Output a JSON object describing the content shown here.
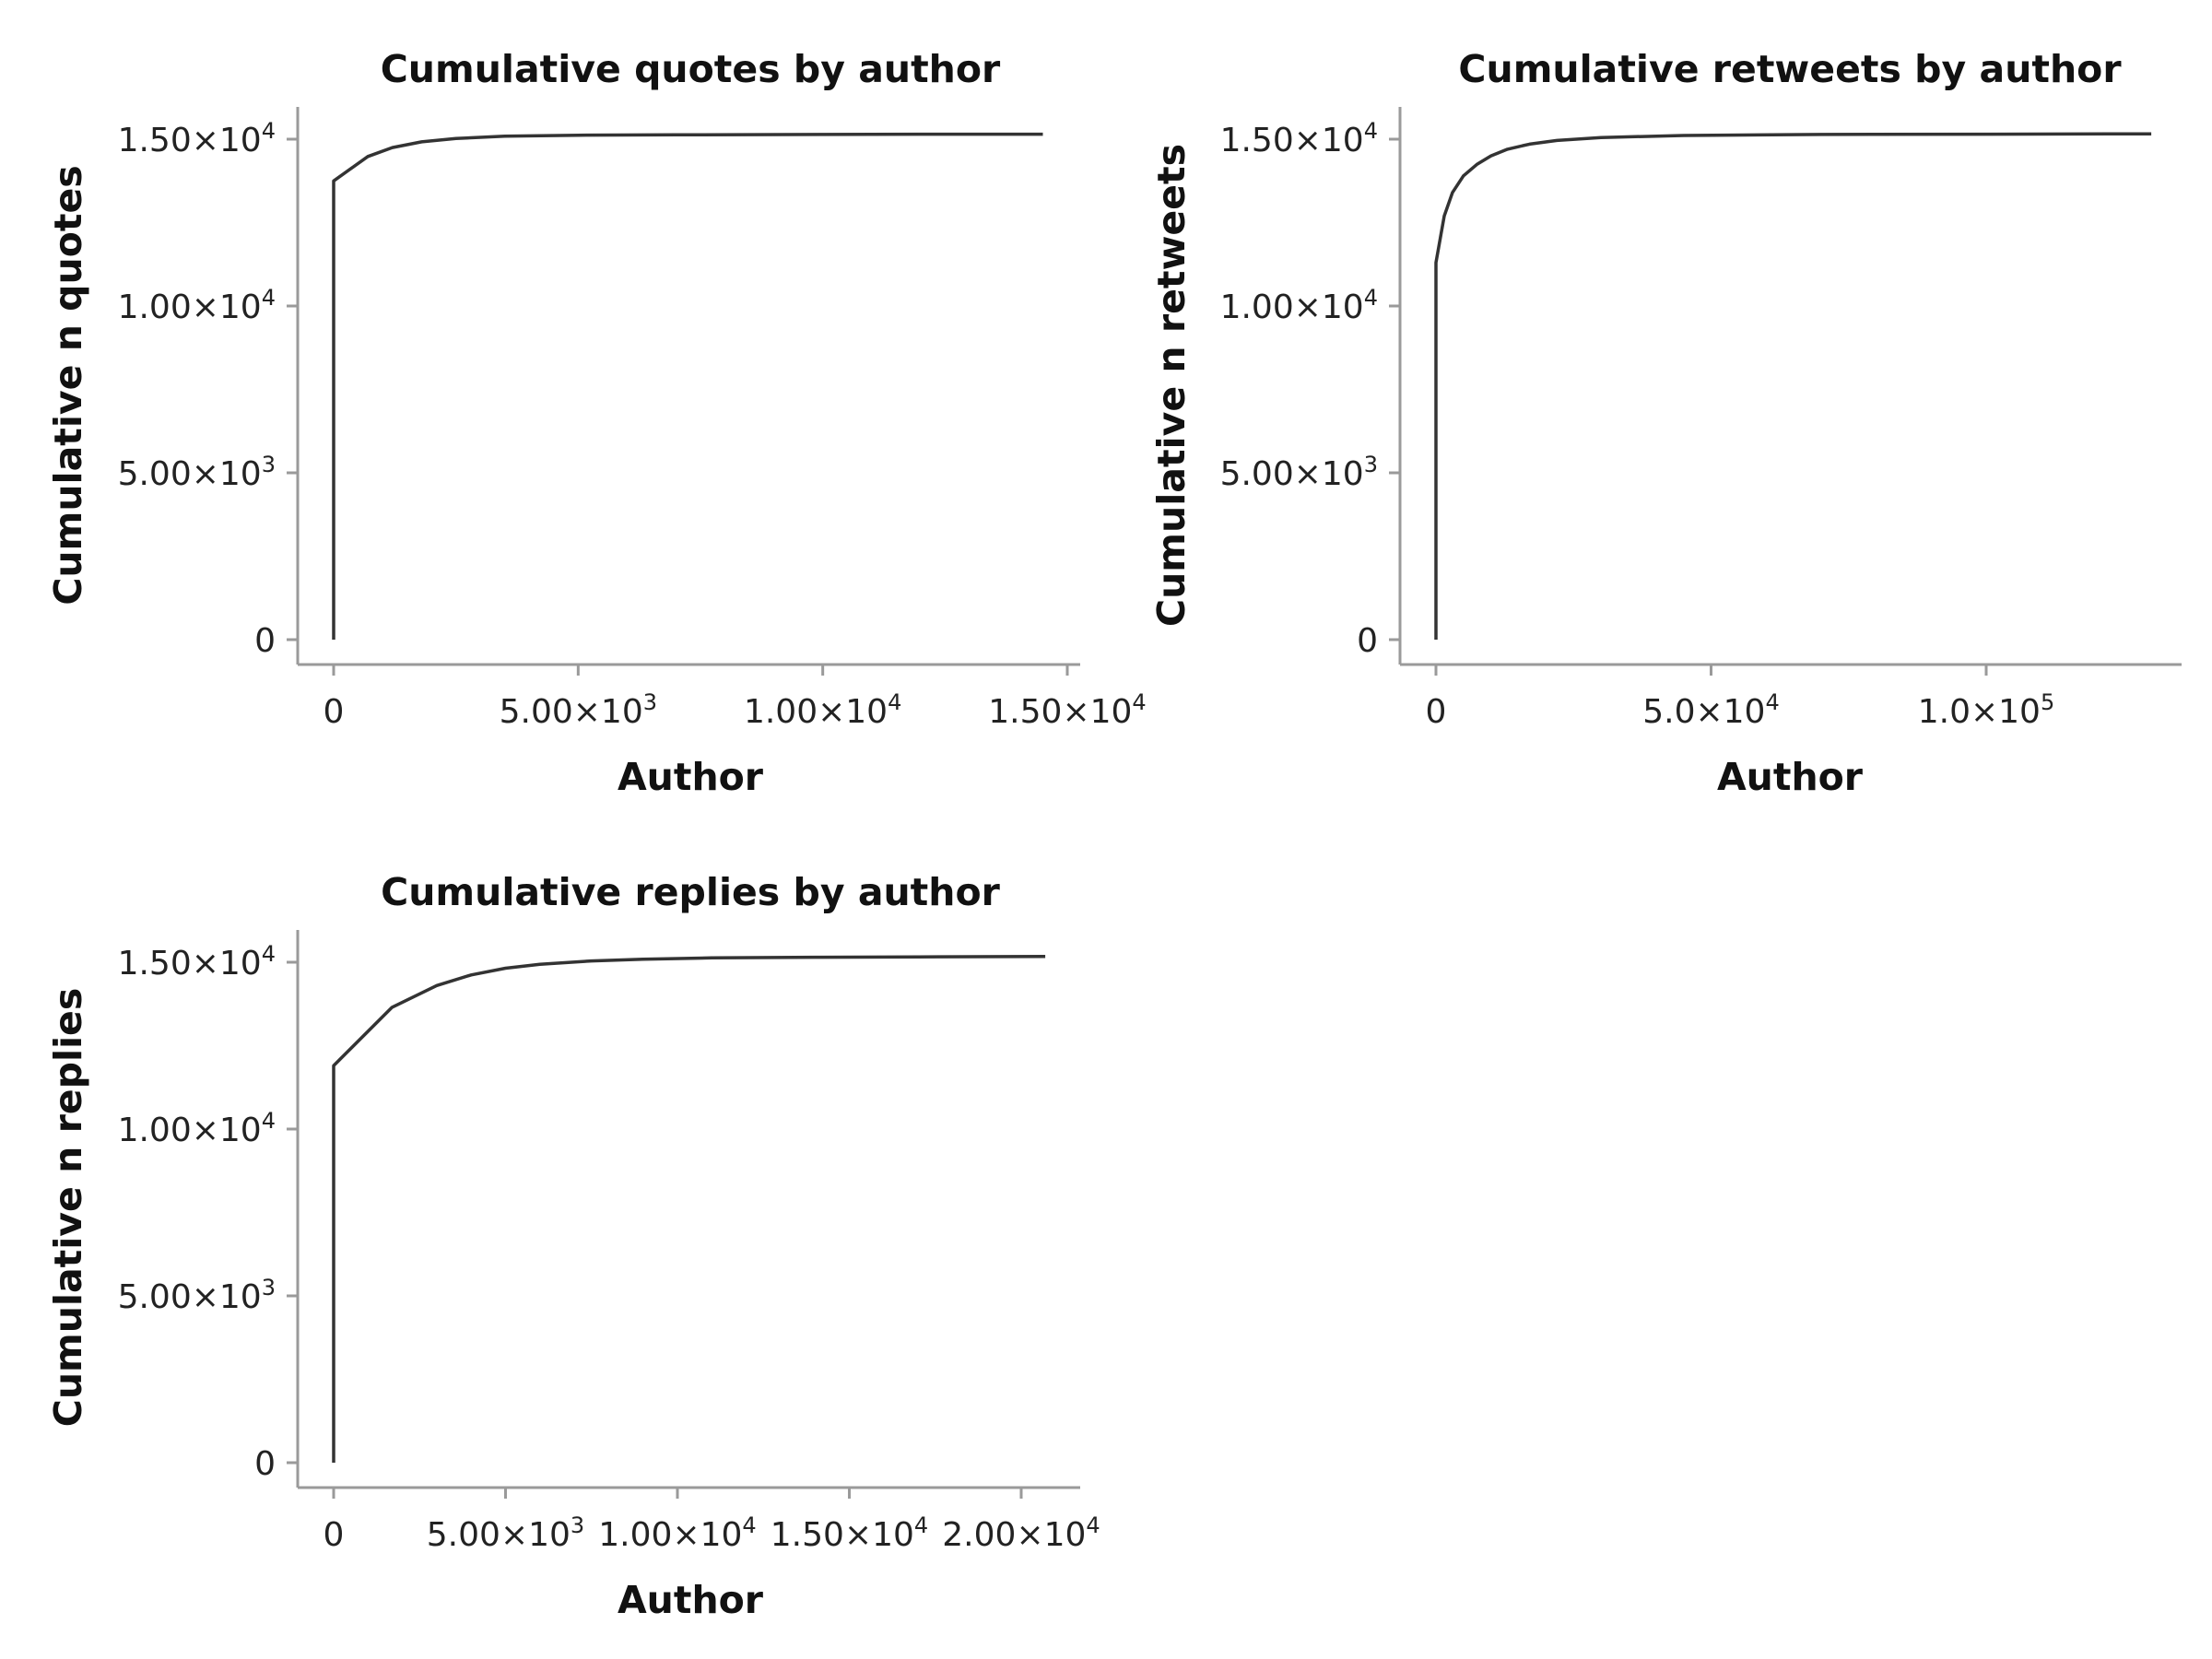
{
  "chart_data": [
    {
      "type": "line",
      "title": "Cumulative quotes by author",
      "xlabel": "Author",
      "ylabel": "Cumulative n quotes",
      "xlim": [
        0,
        15000
      ],
      "ylim": [
        0,
        15000
      ],
      "x_ticks": [
        {
          "value": 0,
          "mantissa": "0",
          "exponent": ""
        },
        {
          "value": 5000,
          "mantissa": "5.00×10",
          "exponent": "3"
        },
        {
          "value": 10000,
          "mantissa": "1.00×10",
          "exponent": "4"
        },
        {
          "value": 15000,
          "mantissa": "1.50×10",
          "exponent": "4"
        }
      ],
      "y_ticks": [
        {
          "value": 0,
          "mantissa": "0",
          "exponent": ""
        },
        {
          "value": 5000,
          "mantissa": "5.00×10",
          "exponent": "3"
        },
        {
          "value": 10000,
          "mantissa": "1.00×10",
          "exponent": "4"
        },
        {
          "value": 15000,
          "mantissa": "1.50×10",
          "exponent": "4"
        }
      ],
      "x_axis_max": 15200,
      "y_axis_max": 16000,
      "grid": false,
      "series": [
        {
          "x": [
            0,
            0,
            700,
            1200,
            1800,
            2500,
            3500,
            5000,
            7000,
            10000,
            12000,
            14500
          ],
          "y": [
            0,
            13750,
            14480,
            14750,
            14920,
            15020,
            15090,
            15120,
            15130,
            15140,
            15150,
            15150
          ]
        }
      ]
    },
    {
      "type": "line",
      "title": "Cumulative retweets by author",
      "xlabel": "Author",
      "ylabel": "Cumulative n retweets",
      "xlim": [
        0,
        130000
      ],
      "ylim": [
        0,
        15000
      ],
      "x_ticks": [
        {
          "value": 0,
          "mantissa": "0",
          "exponent": ""
        },
        {
          "value": 50000,
          "mantissa": "5.0×10",
          "exponent": "4"
        },
        {
          "value": 100000,
          "mantissa": "1.0×10",
          "exponent": "5"
        }
      ],
      "y_ticks": [
        {
          "value": 0,
          "mantissa": "0",
          "exponent": ""
        },
        {
          "value": 5000,
          "mantissa": "5.00×10",
          "exponent": "3"
        },
        {
          "value": 10000,
          "mantissa": "1.00×10",
          "exponent": "4"
        },
        {
          "value": 15000,
          "mantissa": "1.50×10",
          "exponent": "4"
        }
      ],
      "x_axis_max": 136000,
      "y_axis_max": 16000,
      "grid": false,
      "series": [
        {
          "x": [
            0,
            0,
            1500,
            3000,
            5000,
            7500,
            10000,
            13000,
            17000,
            22000,
            30000,
            45000,
            70000,
            100000,
            130000
          ],
          "y": [
            0,
            11300,
            12700,
            13400,
            13900,
            14250,
            14500,
            14700,
            14850,
            14960,
            15050,
            15110,
            15140,
            15150,
            15160
          ]
        }
      ]
    },
    {
      "type": "line",
      "title": "Cumulative replies by author",
      "xlabel": "Author",
      "ylabel": "Cumulative n replies",
      "xlim": [
        0,
        20000
      ],
      "ylim": [
        0,
        15000
      ],
      "x_ticks": [
        {
          "value": 0,
          "mantissa": "0",
          "exponent": ""
        },
        {
          "value": 5000,
          "mantissa": "5.00×10",
          "exponent": "3"
        },
        {
          "value": 10000,
          "mantissa": "1.00×10",
          "exponent": "4"
        },
        {
          "value": 15000,
          "mantissa": "1.50×10",
          "exponent": "4"
        },
        {
          "value": 20000,
          "mantissa": "2.00×10",
          "exponent": "4"
        }
      ],
      "y_ticks": [
        {
          "value": 0,
          "mantissa": "0",
          "exponent": ""
        },
        {
          "value": 5000,
          "mantissa": "5.00×10",
          "exponent": "3"
        },
        {
          "value": 10000,
          "mantissa": "1.00×10",
          "exponent": "4"
        },
        {
          "value": 15000,
          "mantissa": "1.50×10",
          "exponent": "4"
        }
      ],
      "x_axis_max": 21800,
      "y_axis_max": 16000,
      "grid": false,
      "series": [
        {
          "x": [
            0,
            0,
            1700,
            3000,
            4000,
            5000,
            6000,
            7500,
            9000,
            11000,
            14000,
            17000,
            20700
          ],
          "y": [
            0,
            11900,
            13650,
            14300,
            14620,
            14820,
            14940,
            15040,
            15090,
            15130,
            15150,
            15160,
            15170
          ]
        }
      ]
    }
  ],
  "style": {
    "line_color": "#333333",
    "axis_color": "#9a9a9a",
    "text_color": "#111111"
  }
}
